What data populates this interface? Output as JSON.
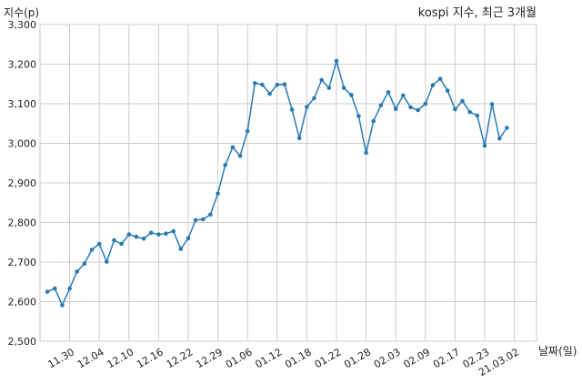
{
  "chart_data": {
    "type": "line",
    "title": "kospi 지수, 최근 3개월",
    "xlabel": "날짜(일)",
    "ylabel": "지수(p)",
    "ylim": [
      2500,
      3300
    ],
    "yticks": [
      2500,
      2600,
      2700,
      2800,
      2900,
      3000,
      3100,
      3200,
      3300
    ],
    "ytick_labels": [
      "2,500",
      "2,600",
      "2,700",
      "2,800",
      "2,900",
      "3,000",
      "3,100",
      "3,200",
      "3,300"
    ],
    "xtick_labels": [
      "11.30",
      "12.04",
      "12.10",
      "12.16",
      "12.22",
      "12.29",
      "01.06",
      "01.12",
      "01.18",
      "01.22",
      "01.28",
      "02.03",
      "02.09",
      "02.17",
      "02.23",
      "21.03.02"
    ],
    "xtick_positions": [
      3,
      7,
      11,
      15,
      19,
      23,
      27,
      31,
      35,
      39,
      43,
      47,
      51,
      55,
      59,
      63
    ],
    "grid": true,
    "color": "#2a7ab5",
    "series": [
      {
        "values": [
          2625,
          2633,
          2591,
          2633,
          2676,
          2696,
          2731,
          2746,
          2701,
          2755,
          2746,
          2770,
          2764,
          2759,
          2774,
          2770,
          2772,
          2778,
          2733,
          2760,
          2806,
          2808,
          2820,
          2873,
          2945,
          2990,
          2968,
          3031,
          3152,
          3148,
          3125,
          3148,
          3149,
          3085,
          3013,
          3092,
          3114,
          3160,
          3140,
          3208,
          3140,
          3122,
          3069,
          2976,
          3056,
          3096,
          3129,
          3087,
          3121,
          3091,
          3084,
          3100,
          3147,
          3163,
          3133,
          3086,
          3107,
          3079,
          3070,
          2994,
          3099,
          3012,
          3039
        ]
      }
    ]
  }
}
